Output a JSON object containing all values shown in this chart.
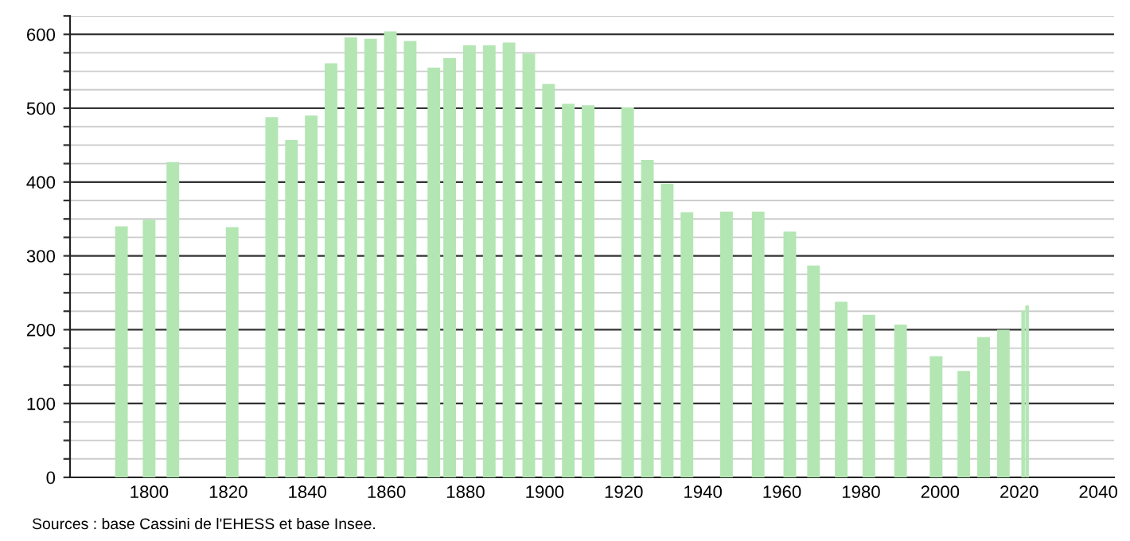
{
  "chart_data": {
    "type": "bar",
    "x": [
      1793,
      1800,
      1806,
      1821,
      1831,
      1836,
      1841,
      1846,
      1851,
      1856,
      1861,
      1866,
      1872,
      1876,
      1881,
      1886,
      1891,
      1896,
      1901,
      1906,
      1911,
      1921,
      1926,
      1931,
      1936,
      1946,
      1954,
      1962,
      1968,
      1975,
      1982,
      1990,
      1999,
      2006,
      2011,
      2016,
      2021,
      2022
    ],
    "values": [
      340,
      349,
      427,
      339,
      488,
      457,
      490,
      561,
      596,
      594,
      604,
      591,
      555,
      568,
      585,
      585,
      589,
      574,
      533,
      506,
      504,
      501,
      430,
      398,
      359,
      360,
      360,
      333,
      287,
      238,
      220,
      207,
      164,
      144,
      190,
      200,
      226,
      233
    ],
    "color": "#b3e6b3",
    "xlim": [
      1780,
      2044
    ],
    "xticks": [
      1800,
      1820,
      1840,
      1860,
      1880,
      1900,
      1920,
      1940,
      1960,
      1980,
      2000,
      2020,
      2040
    ],
    "ylim": [
      0,
      625
    ],
    "yticks": [
      0,
      {
        "value": 25,
        "label": null
      },
      {
        "value": 50,
        "label": null
      },
      {
        "value": 75,
        "label": null
      },
      100,
      {
        "value": 125,
        "label": null
      },
      {
        "value": 150,
        "label": null
      },
      {
        "value": 175,
        "label": null
      },
      200,
      {
        "value": 225,
        "label": null
      },
      {
        "value": 250,
        "label": null
      },
      {
        "value": 275,
        "label": null
      },
      300,
      {
        "value": 325,
        "label": null
      },
      {
        "value": 350,
        "label": null
      },
      {
        "value": 375,
        "label": null
      },
      400,
      {
        "value": 425,
        "label": null
      },
      {
        "value": 450,
        "label": null
      },
      {
        "value": 475,
        "label": null
      },
      500,
      {
        "value": 525,
        "label": null
      },
      {
        "value": 550,
        "label": null
      },
      {
        "value": 575,
        "label": null
      },
      600,
      {
        "value": 625,
        "label": null
      }
    ],
    "grid": "y",
    "annotations": [
      "Sources : base Cassini de l'EHESS et base Insee."
    ]
  }
}
